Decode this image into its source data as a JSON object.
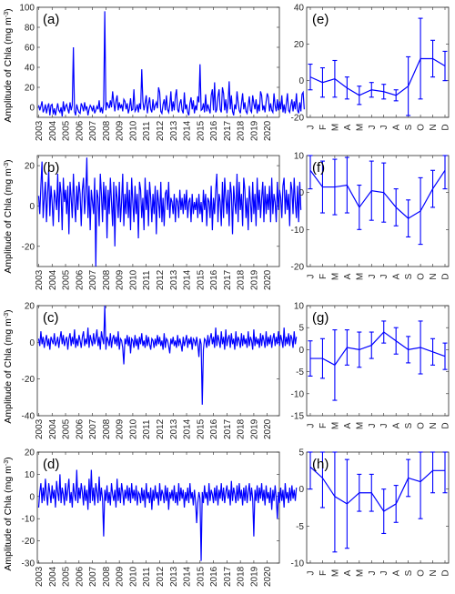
{
  "figure": {
    "ylabel": "Amplitude of Chla (mg m",
    "ylabel_sup": "-3",
    "ylabel_close": ")",
    "series_color": "#0000ff",
    "axis_color": "#262626"
  },
  "chart_data": [
    {
      "type": "line",
      "id": "a",
      "panel_label": "(a)",
      "ylim": [
        -10,
        100
      ],
      "yticks": [
        0,
        20,
        40,
        60,
        80,
        100
      ],
      "xlim": [
        2002.9,
        2020.9
      ],
      "xticks": [
        "2003",
        "2004",
        "2005",
        "2006",
        "2007",
        "2008",
        "2009",
        "2010",
        "2011",
        "2012",
        "2013",
        "2014",
        "2015",
        "2016",
        "2017",
        "2018",
        "2019",
        "2020"
      ],
      "x_start": 2003.0,
      "x_step_months": 1,
      "values": [
        2,
        -3,
        1,
        6,
        -5,
        -2,
        3,
        -6,
        0,
        4,
        -8,
        2,
        3,
        -7,
        -1,
        -8,
        -2,
        4,
        -3,
        -5,
        0,
        -9,
        6,
        -4,
        1,
        3,
        -2,
        -6,
        5,
        -3,
        2,
        60,
        -4,
        -8,
        3,
        -2,
        -5,
        -6,
        4,
        1,
        -4,
        5,
        -2,
        1,
        -8,
        -2,
        2,
        0,
        -4,
        2,
        -6,
        -3,
        1,
        -2,
        7,
        -5,
        0,
        -6,
        3,
        96,
        -3,
        5,
        2,
        -1,
        7,
        0,
        16,
        5,
        -4,
        6,
        12,
        -3,
        5,
        -1,
        3,
        -4,
        8,
        6,
        -2,
        4,
        -6,
        -1,
        9,
        -3,
        -2,
        18,
        -4,
        -2,
        3,
        -5,
        4,
        -2,
        38,
        6,
        -3,
        4,
        12,
        -6,
        3,
        10,
        -2,
        -5,
        8,
        -3,
        2,
        5,
        -1,
        20,
        15,
        -4,
        -6,
        3,
        8,
        -3,
        12,
        -2,
        -5,
        2,
        16,
        -4,
        6,
        -3,
        11,
        18,
        -2,
        -5,
        4,
        8,
        -3,
        -6,
        15,
        -2,
        3,
        -5,
        -8,
        4,
        10,
        -2,
        7,
        -6,
        2,
        -3,
        11,
        5,
        43,
        -3,
        -2,
        4,
        -5,
        13,
        -4,
        3,
        -2,
        -6,
        12,
        18,
        -3,
        25,
        -5,
        -2,
        11,
        18,
        -2,
        -5,
        20,
        14,
        -3,
        8,
        -6,
        4,
        26,
        -2,
        12,
        -4,
        -8,
        3,
        -2,
        16,
        5,
        -3,
        -6,
        4,
        14,
        -2,
        5,
        -4,
        -6,
        2,
        11,
        -3,
        -5,
        12,
        4,
        -2,
        8,
        -6,
        3,
        -4,
        16,
        12,
        -3,
        2,
        -5,
        6,
        14,
        10,
        -4,
        4,
        -3,
        -5,
        14,
        2,
        -4,
        8,
        -3,
        6,
        -2,
        12,
        -5,
        3,
        -6,
        4,
        14,
        -3,
        -5,
        2,
        8,
        -4,
        6,
        -2,
        14,
        -3,
        -6,
        5,
        -4,
        13,
        15,
        -2
      ]
    },
    {
      "type": "line",
      "id": "b",
      "panel_label": "(b)",
      "ylim": [
        -30,
        25
      ],
      "yticks": [
        -20,
        0,
        20
      ],
      "xlim": [
        2002.9,
        2020.9
      ],
      "xticks": [
        "2003",
        "2004",
        "2005",
        "2006",
        "2007",
        "2008",
        "2009",
        "2010",
        "2011",
        "2012",
        "2013",
        "2014",
        "2015",
        "2016",
        "2017",
        "2018",
        "2019",
        "2020"
      ],
      "x_start": 2003.0,
      "x_step_months": 1,
      "values": [
        5,
        -4,
        10,
        22,
        -6,
        4,
        12,
        -8,
        6,
        18,
        -5,
        10,
        2,
        -10,
        8,
        4,
        -2,
        16,
        -8,
        12,
        6,
        -12,
        14,
        2,
        8,
        -4,
        10,
        -14,
        12,
        4,
        -6,
        16,
        2,
        -8,
        10,
        -2,
        12,
        6,
        -10,
        8,
        14,
        -4,
        6,
        24,
        -6,
        10,
        -12,
        8,
        2,
        -4,
        14,
        -30,
        8,
        4,
        -10,
        16,
        6,
        -8,
        12,
        -2,
        10,
        -16,
        8,
        -4,
        14,
        2,
        -10,
        12,
        -20,
        10,
        4,
        -6,
        12,
        -8,
        2,
        16,
        -10,
        6,
        -4,
        12,
        -6,
        8,
        -12,
        14,
        2,
        -8,
        10,
        -4,
        6,
        -16,
        12,
        8,
        -6,
        4,
        -12,
        14,
        -2,
        8,
        -10,
        12,
        4,
        -8,
        6,
        -4,
        10,
        -14,
        8,
        2,
        -6,
        12,
        -8,
        4,
        -10,
        6,
        8,
        -2,
        12,
        -6,
        4,
        2,
        -4,
        6,
        -8,
        4,
        2,
        -6,
        8,
        -2,
        4,
        -4,
        6,
        -2,
        8,
        -6,
        2,
        4,
        -8,
        6,
        -4,
        2,
        -2,
        4,
        -6,
        6,
        -4,
        2,
        -8,
        8,
        -2,
        6,
        -10,
        4,
        2,
        -6,
        10,
        -12,
        4,
        -4,
        8,
        16,
        -8,
        6,
        2,
        -10,
        12,
        -6,
        14,
        4,
        -4,
        8,
        -10,
        12,
        6,
        -14,
        10,
        2,
        -4,
        16,
        -8,
        12,
        -2,
        6,
        -10,
        14,
        8,
        -6,
        4,
        -12,
        10,
        2,
        -8,
        12,
        -4,
        6,
        -10,
        14,
        -2,
        8,
        -6,
        4,
        12,
        -8,
        10,
        -4,
        6,
        -2,
        10,
        -8,
        14,
        -4,
        6,
        2,
        -8,
        12,
        -2,
        8,
        4,
        -6,
        10,
        14,
        -4,
        8,
        -2,
        6,
        -10,
        12,
        8,
        -4,
        14,
        2,
        -6,
        10,
        -8,
        12,
        -2
      ]
    },
    {
      "type": "line",
      "id": "c",
      "panel_label": "(c)",
      "ylim": [
        -40,
        20
      ],
      "yticks": [
        -40,
        -20,
        0,
        20
      ],
      "xlim": [
        2002.9,
        2020.9
      ],
      "xticks": [
        "2003",
        "2004",
        "2005",
        "2006",
        "2007",
        "2008",
        "2009",
        "2010",
        "2011",
        "2012",
        "2013",
        "2014",
        "2015",
        "2016",
        "2017",
        "2018",
        "2019",
        "2020"
      ],
      "x_start": 2003.0,
      "x_step_months": 1,
      "values": [
        2,
        -2,
        6,
        -1,
        3,
        -3,
        1,
        4,
        -2,
        2,
        -4,
        3,
        1,
        -1,
        5,
        -2,
        0,
        3,
        -3,
        2,
        6,
        -1,
        4,
        -2,
        1,
        3,
        -4,
        2,
        5,
        -2,
        3,
        -1,
        7,
        -3,
        2,
        -2,
        4,
        1,
        -3,
        3,
        6,
        -2,
        2,
        -1,
        8,
        -3,
        4,
        1,
        -2,
        5,
        -1,
        2,
        7,
        -2,
        3,
        -4,
        6,
        2,
        -1,
        20,
        -4,
        3,
        1,
        -2,
        5,
        -3,
        2,
        4,
        -1,
        3,
        -2,
        6,
        -4,
        2,
        1,
        -3,
        -12,
        2,
        -1,
        4,
        -2,
        3,
        -6,
        2,
        1,
        -3,
        4,
        -2,
        2,
        -4,
        3,
        -1,
        5,
        -2,
        1,
        -3,
        4,
        -2,
        3,
        -1,
        -4,
        2,
        1,
        -3,
        2,
        -2,
        4,
        -1,
        3,
        -2,
        1,
        -4,
        5,
        -3,
        2,
        1,
        -2,
        -6,
        2,
        -1,
        3,
        -2,
        1,
        -3,
        4,
        -2,
        2,
        -1,
        -5,
        3,
        -2,
        1,
        4,
        -3,
        2,
        -1,
        3,
        -4,
        2,
        1,
        -2,
        3,
        -1,
        -8,
        2,
        -1,
        -34,
        -4,
        2,
        1,
        -3,
        4,
        -2,
        2,
        5,
        -1,
        3,
        -3,
        8,
        -2,
        4,
        1,
        -3,
        6,
        -1,
        3,
        -4,
        7,
        -2,
        2,
        4,
        -3,
        5,
        -1,
        2,
        -4,
        6,
        -2,
        3,
        1,
        -3,
        5,
        -2,
        4,
        -1,
        2,
        -3,
        6,
        -2,
        3,
        1,
        -4,
        7,
        -2,
        3,
        -1,
        2,
        -3,
        5,
        -2,
        4,
        1,
        -3,
        6,
        -2,
        3,
        -1,
        4,
        -3,
        2,
        5,
        -2,
        3,
        -1,
        6,
        -2,
        4,
        1,
        -3,
        8,
        -2,
        3,
        -1,
        5,
        -2,
        4,
        2,
        -3,
        6,
        -1,
        3
      ]
    },
    {
      "type": "line",
      "id": "d",
      "panel_label": "(d)",
      "ylim": [
        -30,
        20
      ],
      "yticks": [
        -30,
        -20,
        -10,
        0,
        10,
        20
      ],
      "xlim": [
        2002.9,
        2020.9
      ],
      "xticks": [
        "2003",
        "2004",
        "2005",
        "2006",
        "2007",
        "2008",
        "2009",
        "2010",
        "2011",
        "2012",
        "2013",
        "2014",
        "2015",
        "2016",
        "2017",
        "2018",
        "2019",
        "2020"
      ],
      "x_start": 2003.0,
      "x_step_months": 1,
      "values": [
        -5,
        2,
        6,
        -3,
        4,
        -2,
        8,
        1,
        -4,
        6,
        2,
        -3,
        5,
        -1,
        3,
        -5,
        7,
        2,
        -2,
        10,
        -3,
        4,
        1,
        -4,
        6,
        -2,
        3,
        8,
        -3,
        2,
        -5,
        6,
        1,
        -2,
        12,
        -3,
        4,
        -1,
        6,
        2,
        -4,
        5,
        -2,
        3,
        -6,
        8,
        -3,
        12,
        -2,
        4,
        -4,
        6,
        2,
        -3,
        9,
        -2,
        4,
        -1,
        -18,
        3,
        -2,
        5,
        -3,
        2,
        -4,
        6,
        1,
        -2,
        3,
        -5,
        8,
        -2,
        4,
        -3,
        6,
        2,
        -4,
        3,
        -1,
        5,
        -2,
        4,
        -3,
        6,
        -1,
        3,
        -2,
        5,
        -4,
        2,
        1,
        -3,
        4,
        -2,
        3,
        -5,
        6,
        -1,
        2,
        -3,
        4,
        -6,
        3,
        -2,
        5,
        -1,
        2,
        -4,
        6,
        -2,
        3,
        1,
        -3,
        5,
        -2,
        4,
        -6,
        2,
        -1,
        3,
        -2,
        5,
        -3,
        2,
        -4,
        6,
        -2,
        4,
        -1,
        3,
        -5,
        2,
        -2,
        4,
        -3,
        6,
        -1,
        2,
        -4,
        3,
        -2,
        -12,
        -3,
        2,
        -1,
        -29,
        2,
        -3,
        5,
        -1,
        2,
        -4,
        6,
        -2,
        3,
        1,
        -3,
        4,
        -2,
        5,
        -4,
        3,
        -1,
        6,
        -2,
        4,
        -3,
        2,
        5,
        -1,
        3,
        -4,
        7,
        -2,
        4,
        1,
        -3,
        5,
        -2,
        6,
        -1,
        3,
        -4,
        4,
        -2,
        5,
        -3,
        2,
        6,
        -2,
        4,
        -1,
        -18,
        3,
        -2,
        5,
        -3,
        4,
        -1,
        6,
        -2,
        3,
        -4,
        5,
        -1,
        2,
        -3,
        4,
        -6,
        3,
        -2,
        5,
        -1,
        -10,
        2,
        -3,
        4,
        -2,
        3,
        -5,
        6,
        -1,
        2,
        -3,
        4,
        -2,
        5,
        -1,
        3,
        -2,
        4
      ]
    },
    {
      "type": "errorbar",
      "id": "e",
      "panel_label": "(e)",
      "ylim": [
        -20,
        40
      ],
      "yticks": [
        -20,
        0,
        20,
        40
      ],
      "categories": [
        "J",
        "F",
        "M",
        "A",
        "M",
        "J",
        "J",
        "A",
        "S",
        "O",
        "N",
        "D"
      ],
      "values": [
        2,
        -1,
        1,
        -4,
        -8,
        -5,
        -6,
        -8,
        -3,
        12,
        12,
        8
      ],
      "errors": [
        7,
        8,
        10,
        6,
        5,
        4,
        4,
        3,
        16,
        22,
        10,
        8
      ]
    },
    {
      "type": "errorbar",
      "id": "f",
      "panel_label": "(f)",
      "ylim": [
        -20,
        10
      ],
      "yticks": [
        -20,
        -10,
        0,
        10
      ],
      "categories": [
        "J",
        "F",
        "M",
        "A",
        "M",
        "J",
        "J",
        "A",
        "S",
        "O",
        "N",
        "D"
      ],
      "values": [
        6,
        1.5,
        1.5,
        2,
        -4,
        0.5,
        0,
        -4,
        -7,
        -5,
        1,
        6
      ],
      "errors": [
        5,
        7,
        7.5,
        7.5,
        6,
        8,
        8,
        5,
        5,
        9,
        5,
        5
      ]
    },
    {
      "type": "errorbar",
      "id": "g",
      "panel_label": "(g)",
      "ylim": [
        -15,
        10
      ],
      "yticks": [
        -15,
        -10,
        -5,
        0,
        5,
        10
      ],
      "categories": [
        "J",
        "F",
        "M",
        "A",
        "M",
        "J",
        "J",
        "A",
        "S",
        "O",
        "N",
        "D"
      ],
      "values": [
        -2,
        -2,
        -3.5,
        0.5,
        0,
        1,
        4,
        2,
        0,
        0.5,
        -0.5,
        -1.5
      ],
      "errors": [
        4,
        4.5,
        8,
        4,
        4,
        3,
        2.5,
        3,
        3,
        6,
        3,
        3
      ]
    },
    {
      "type": "errorbar",
      "id": "h",
      "panel_label": "(h)",
      "ylim": [
        -10,
        5
      ],
      "yticks": [
        -10,
        -5,
        0,
        5
      ],
      "categories": [
        "J",
        "F",
        "M",
        "A",
        "M",
        "J",
        "J",
        "A",
        "S",
        "O",
        "N",
        "D"
      ],
      "values": [
        3,
        1.5,
        -1,
        -2,
        -0.5,
        -0.5,
        -3,
        -2,
        1.5,
        1,
        2.5,
        2.5
      ],
      "errors": [
        3,
        4,
        7.5,
        6,
        2.5,
        2.5,
        3,
        2.5,
        2.5,
        5,
        3,
        3
      ]
    }
  ]
}
